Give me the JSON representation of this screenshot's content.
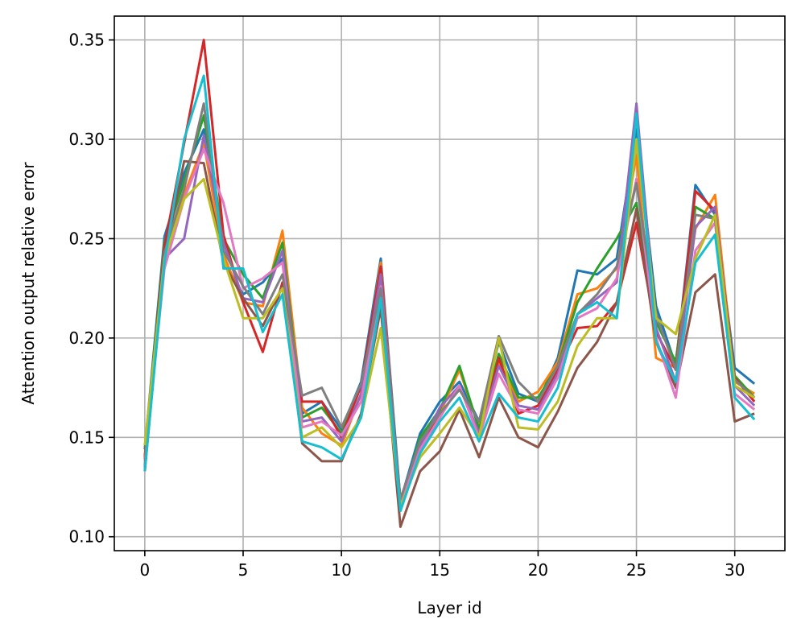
{
  "chart_data": {
    "type": "line",
    "title": "",
    "xlabel": "Layer id",
    "ylabel": "Attention output relative error",
    "xlim": [
      -1.55,
      32.55
    ],
    "ylim": [
      0.093,
      0.362
    ],
    "xticks": [
      0,
      5,
      10,
      15,
      20,
      25,
      30
    ],
    "xtick_labels": [
      "0",
      "5",
      "10",
      "15",
      "20",
      "25",
      "30"
    ],
    "yticks": [
      0.1,
      0.15,
      0.2,
      0.25,
      0.3,
      0.35
    ],
    "ytick_labels": [
      "0.10",
      "0.15",
      "0.20",
      "0.25",
      "0.30",
      "0.35"
    ],
    "grid": true,
    "x": [
      0,
      1,
      2,
      3,
      4,
      5,
      6,
      7,
      8,
      9,
      10,
      11,
      12,
      13,
      14,
      15,
      16,
      17,
      18,
      19,
      20,
      21,
      22,
      23,
      24,
      25,
      26,
      27,
      28,
      29,
      30,
      31
    ],
    "series": [
      {
        "color": "#1f77b4",
        "values": [
          0.144,
          0.251,
          0.283,
          0.305,
          0.239,
          0.222,
          0.228,
          0.24,
          0.162,
          0.168,
          0.154,
          0.178,
          0.24,
          0.118,
          0.152,
          0.168,
          0.178,
          0.158,
          0.198,
          0.172,
          0.168,
          0.19,
          0.234,
          0.232,
          0.24,
          0.305,
          0.216,
          0.186,
          0.277,
          0.262,
          0.185,
          0.177
        ]
      },
      {
        "color": "#ff7f0e",
        "values": [
          0.141,
          0.244,
          0.272,
          0.298,
          0.242,
          0.218,
          0.216,
          0.254,
          0.165,
          0.152,
          0.146,
          0.172,
          0.238,
          0.114,
          0.148,
          0.162,
          0.184,
          0.155,
          0.188,
          0.168,
          0.173,
          0.188,
          0.222,
          0.225,
          0.235,
          0.292,
          0.19,
          0.185,
          0.255,
          0.272,
          0.178,
          0.172
        ]
      },
      {
        "color": "#2ca02c",
        "values": [
          0.14,
          0.248,
          0.279,
          0.312,
          0.25,
          0.232,
          0.22,
          0.248,
          0.16,
          0.165,
          0.152,
          0.176,
          0.232,
          0.116,
          0.15,
          0.164,
          0.186,
          0.154,
          0.192,
          0.17,
          0.17,
          0.186,
          0.218,
          0.235,
          0.25,
          0.268,
          0.208,
          0.188,
          0.266,
          0.26,
          0.181,
          0.17
        ]
      },
      {
        "color": "#d62728",
        "values": [
          0.139,
          0.246,
          0.298,
          0.35,
          0.252,
          0.218,
          0.193,
          0.228,
          0.168,
          0.168,
          0.15,
          0.176,
          0.236,
          0.113,
          0.146,
          0.16,
          0.176,
          0.15,
          0.19,
          0.162,
          0.166,
          0.184,
          0.205,
          0.206,
          0.218,
          0.258,
          0.203,
          0.184,
          0.274,
          0.264,
          0.18,
          0.168
        ]
      },
      {
        "color": "#9467bd",
        "values": [
          0.135,
          0.24,
          0.25,
          0.302,
          0.248,
          0.22,
          0.218,
          0.244,
          0.158,
          0.16,
          0.148,
          0.172,
          0.232,
          0.115,
          0.145,
          0.165,
          0.176,
          0.152,
          0.186,
          0.166,
          0.164,
          0.182,
          0.212,
          0.22,
          0.228,
          0.318,
          0.205,
          0.178,
          0.256,
          0.266,
          0.176,
          0.166
        ]
      },
      {
        "color": "#8c564b",
        "values": [
          0.133,
          0.24,
          0.289,
          0.288,
          0.238,
          0.22,
          0.206,
          0.226,
          0.147,
          0.138,
          0.138,
          0.162,
          0.215,
          0.105,
          0.133,
          0.143,
          0.164,
          0.14,
          0.17,
          0.15,
          0.145,
          0.163,
          0.185,
          0.198,
          0.218,
          0.265,
          0.198,
          0.175,
          0.223,
          0.232,
          0.158,
          0.162
        ]
      },
      {
        "color": "#e377c2",
        "values": [
          0.138,
          0.235,
          0.27,
          0.295,
          0.268,
          0.225,
          0.23,
          0.238,
          0.155,
          0.158,
          0.151,
          0.168,
          0.226,
          0.116,
          0.144,
          0.16,
          0.176,
          0.15,
          0.182,
          0.164,
          0.162,
          0.18,
          0.21,
          0.215,
          0.23,
          0.28,
          0.2,
          0.17,
          0.244,
          0.258,
          0.172,
          0.164
        ]
      },
      {
        "color": "#7f7f7f",
        "values": [
          0.136,
          0.243,
          0.275,
          0.318,
          0.244,
          0.226,
          0.212,
          0.232,
          0.171,
          0.175,
          0.155,
          0.177,
          0.225,
          0.119,
          0.148,
          0.162,
          0.174,
          0.158,
          0.201,
          0.178,
          0.168,
          0.186,
          0.212,
          0.222,
          0.236,
          0.278,
          0.212,
          0.184,
          0.262,
          0.26,
          0.179,
          0.17
        ]
      },
      {
        "color": "#bcbd22",
        "values": [
          0.146,
          0.24,
          0.27,
          0.28,
          0.24,
          0.21,
          0.21,
          0.225,
          0.15,
          0.155,
          0.145,
          0.16,
          0.205,
          0.115,
          0.14,
          0.152,
          0.165,
          0.15,
          0.2,
          0.155,
          0.154,
          0.168,
          0.196,
          0.21,
          0.21,
          0.3,
          0.21,
          0.202,
          0.24,
          0.262,
          0.176,
          0.17
        ]
      },
      {
        "color": "#17becf",
        "values": [
          0.133,
          0.238,
          0.3,
          0.332,
          0.235,
          0.235,
          0.203,
          0.222,
          0.148,
          0.145,
          0.139,
          0.16,
          0.22,
          0.113,
          0.142,
          0.158,
          0.17,
          0.148,
          0.172,
          0.16,
          0.158,
          0.175,
          0.212,
          0.218,
          0.21,
          0.313,
          0.198,
          0.178,
          0.238,
          0.252,
          0.17,
          0.159
        ]
      }
    ]
  }
}
